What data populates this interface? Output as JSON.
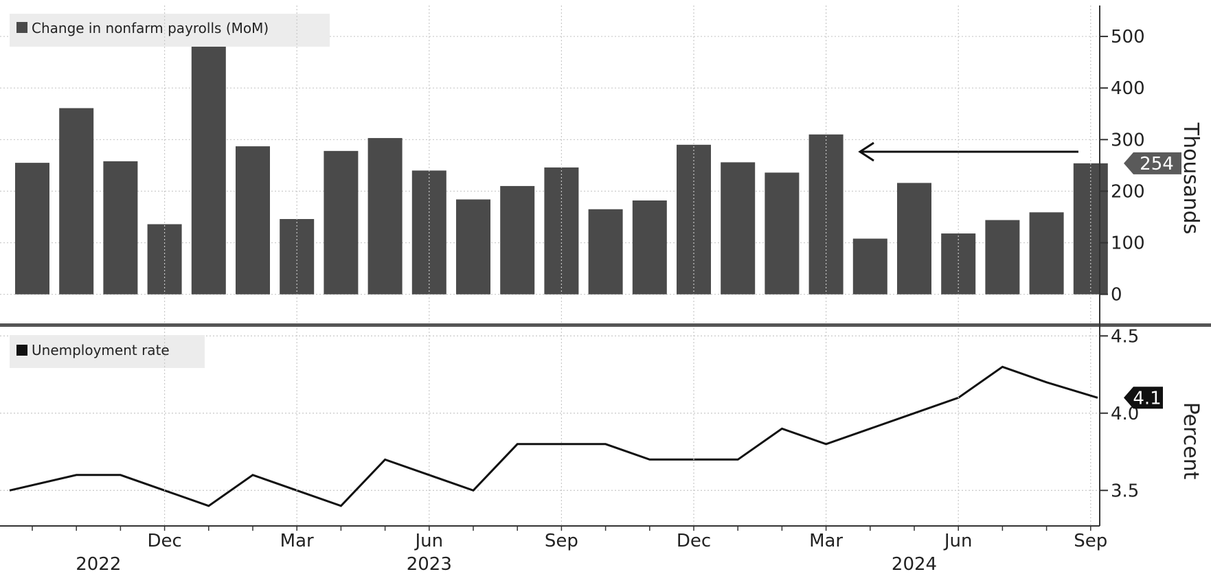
{
  "chart_data": [
    {
      "type": "bar",
      "legend": "Change in nonfarm payrolls (MoM)",
      "ylabel": "Thousands",
      "ylim": [
        -55,
        560
      ],
      "yticks": [
        0,
        100,
        200,
        300,
        400,
        500
      ],
      "last_value_label": "254",
      "annotation": "arrow pointing left from latest value toward Mar 2024",
      "categories": [
        "Sep 2022",
        "Oct 2022",
        "Nov 2022",
        "Dec 2022",
        "Jan 2023",
        "Feb 2023",
        "Mar 2023",
        "Apr 2023",
        "May 2023",
        "Jun 2023",
        "Jul 2023",
        "Aug 2023",
        "Sep 2023",
        "Oct 2023",
        "Nov 2023",
        "Dec 2023",
        "Jan 2024",
        "Feb 2024",
        "Mar 2024",
        "Apr 2024",
        "May 2024",
        "Jun 2024",
        "Jul 2024",
        "Aug 2024",
        "Sep 2024"
      ],
      "values": [
        255,
        361,
        258,
        136,
        482,
        287,
        146,
        278,
        303,
        240,
        184,
        210,
        246,
        165,
        182,
        290,
        256,
        236,
        310,
        108,
        216,
        118,
        144,
        159,
        254
      ],
      "color": "#4a4a4a"
    },
    {
      "type": "line",
      "legend": "Unemployment rate",
      "ylabel": "Percent",
      "ylim": [
        3.27,
        4.55
      ],
      "yticks": [
        3.5,
        4.0,
        4.5
      ],
      "ytick_labels": [
        "3.5",
        "4.0",
        "4.5"
      ],
      "last_value_label": "4.1",
      "x": [
        "Sep 2022",
        "Oct 2022",
        "Nov 2022",
        "Dec 2022",
        "Jan 2023",
        "Feb 2023",
        "Mar 2023",
        "Apr 2023",
        "May 2023",
        "Jun 2023",
        "Jul 2023",
        "Aug 2023",
        "Sep 2023",
        "Oct 2023",
        "Nov 2023",
        "Dec 2023",
        "Jan 2024",
        "Feb 2024",
        "Mar 2024",
        "Apr 2024",
        "May 2024",
        "Jun 2024",
        "Jul 2024",
        "Aug 2024",
        "Sep 2024"
      ],
      "values": [
        3.5,
        3.6,
        3.6,
        3.5,
        3.4,
        3.6,
        3.5,
        3.4,
        3.7,
        3.6,
        3.5,
        3.8,
        3.8,
        3.8,
        3.7,
        3.7,
        3.7,
        3.9,
        3.8,
        3.9,
        4.0,
        4.1,
        4.3,
        4.2,
        4.1
      ],
      "color": "#111111"
    }
  ],
  "x_axis": {
    "month_labels": [
      {
        "label": "Dec",
        "index": 3
      },
      {
        "label": "Mar",
        "index": 6
      },
      {
        "label": "Jun",
        "index": 9
      },
      {
        "label": "Sep",
        "index": 12
      },
      {
        "label": "Dec",
        "index": 15
      },
      {
        "label": "Mar",
        "index": 18
      },
      {
        "label": "Jun",
        "index": 21
      },
      {
        "label": "Sep",
        "index": 24
      }
    ],
    "year_labels": [
      {
        "label": "2022",
        "index": 1.5
      },
      {
        "label": "2023",
        "index": 9
      },
      {
        "label": "2024",
        "index": 20
      }
    ]
  }
}
